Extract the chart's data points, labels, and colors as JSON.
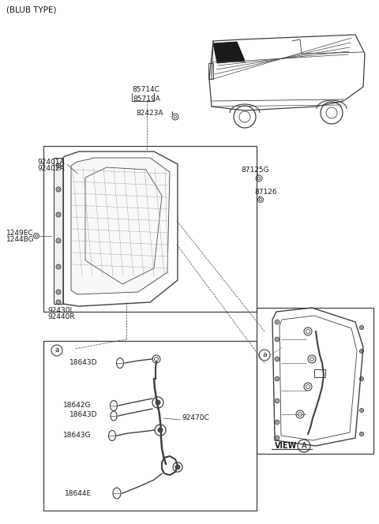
{
  "bg_color": "#ffffff",
  "line_color": "#404040",
  "text_color": "#1a1a1a",
  "title": "(BLUB TYPE)",
  "labels": {
    "85714C": "85714C",
    "85719A": "85719A",
    "82423A": "82423A",
    "92401A": "92401A",
    "92402A": "92402A",
    "87125G": "87125G",
    "87126": "87126",
    "1249EC": "1249EC",
    "1244BG": "1244BG",
    "92430L": "92430L",
    "92440R": "92440R",
    "18643D_1": "18643D",
    "18642G": "18642G",
    "18643D_2": "18643D",
    "18643G": "18643G",
    "18644E": "18644E",
    "92470C": "92470C",
    "VIEW": "VIEW",
    "A": "A",
    "a1": "a",
    "a2": "a"
  }
}
